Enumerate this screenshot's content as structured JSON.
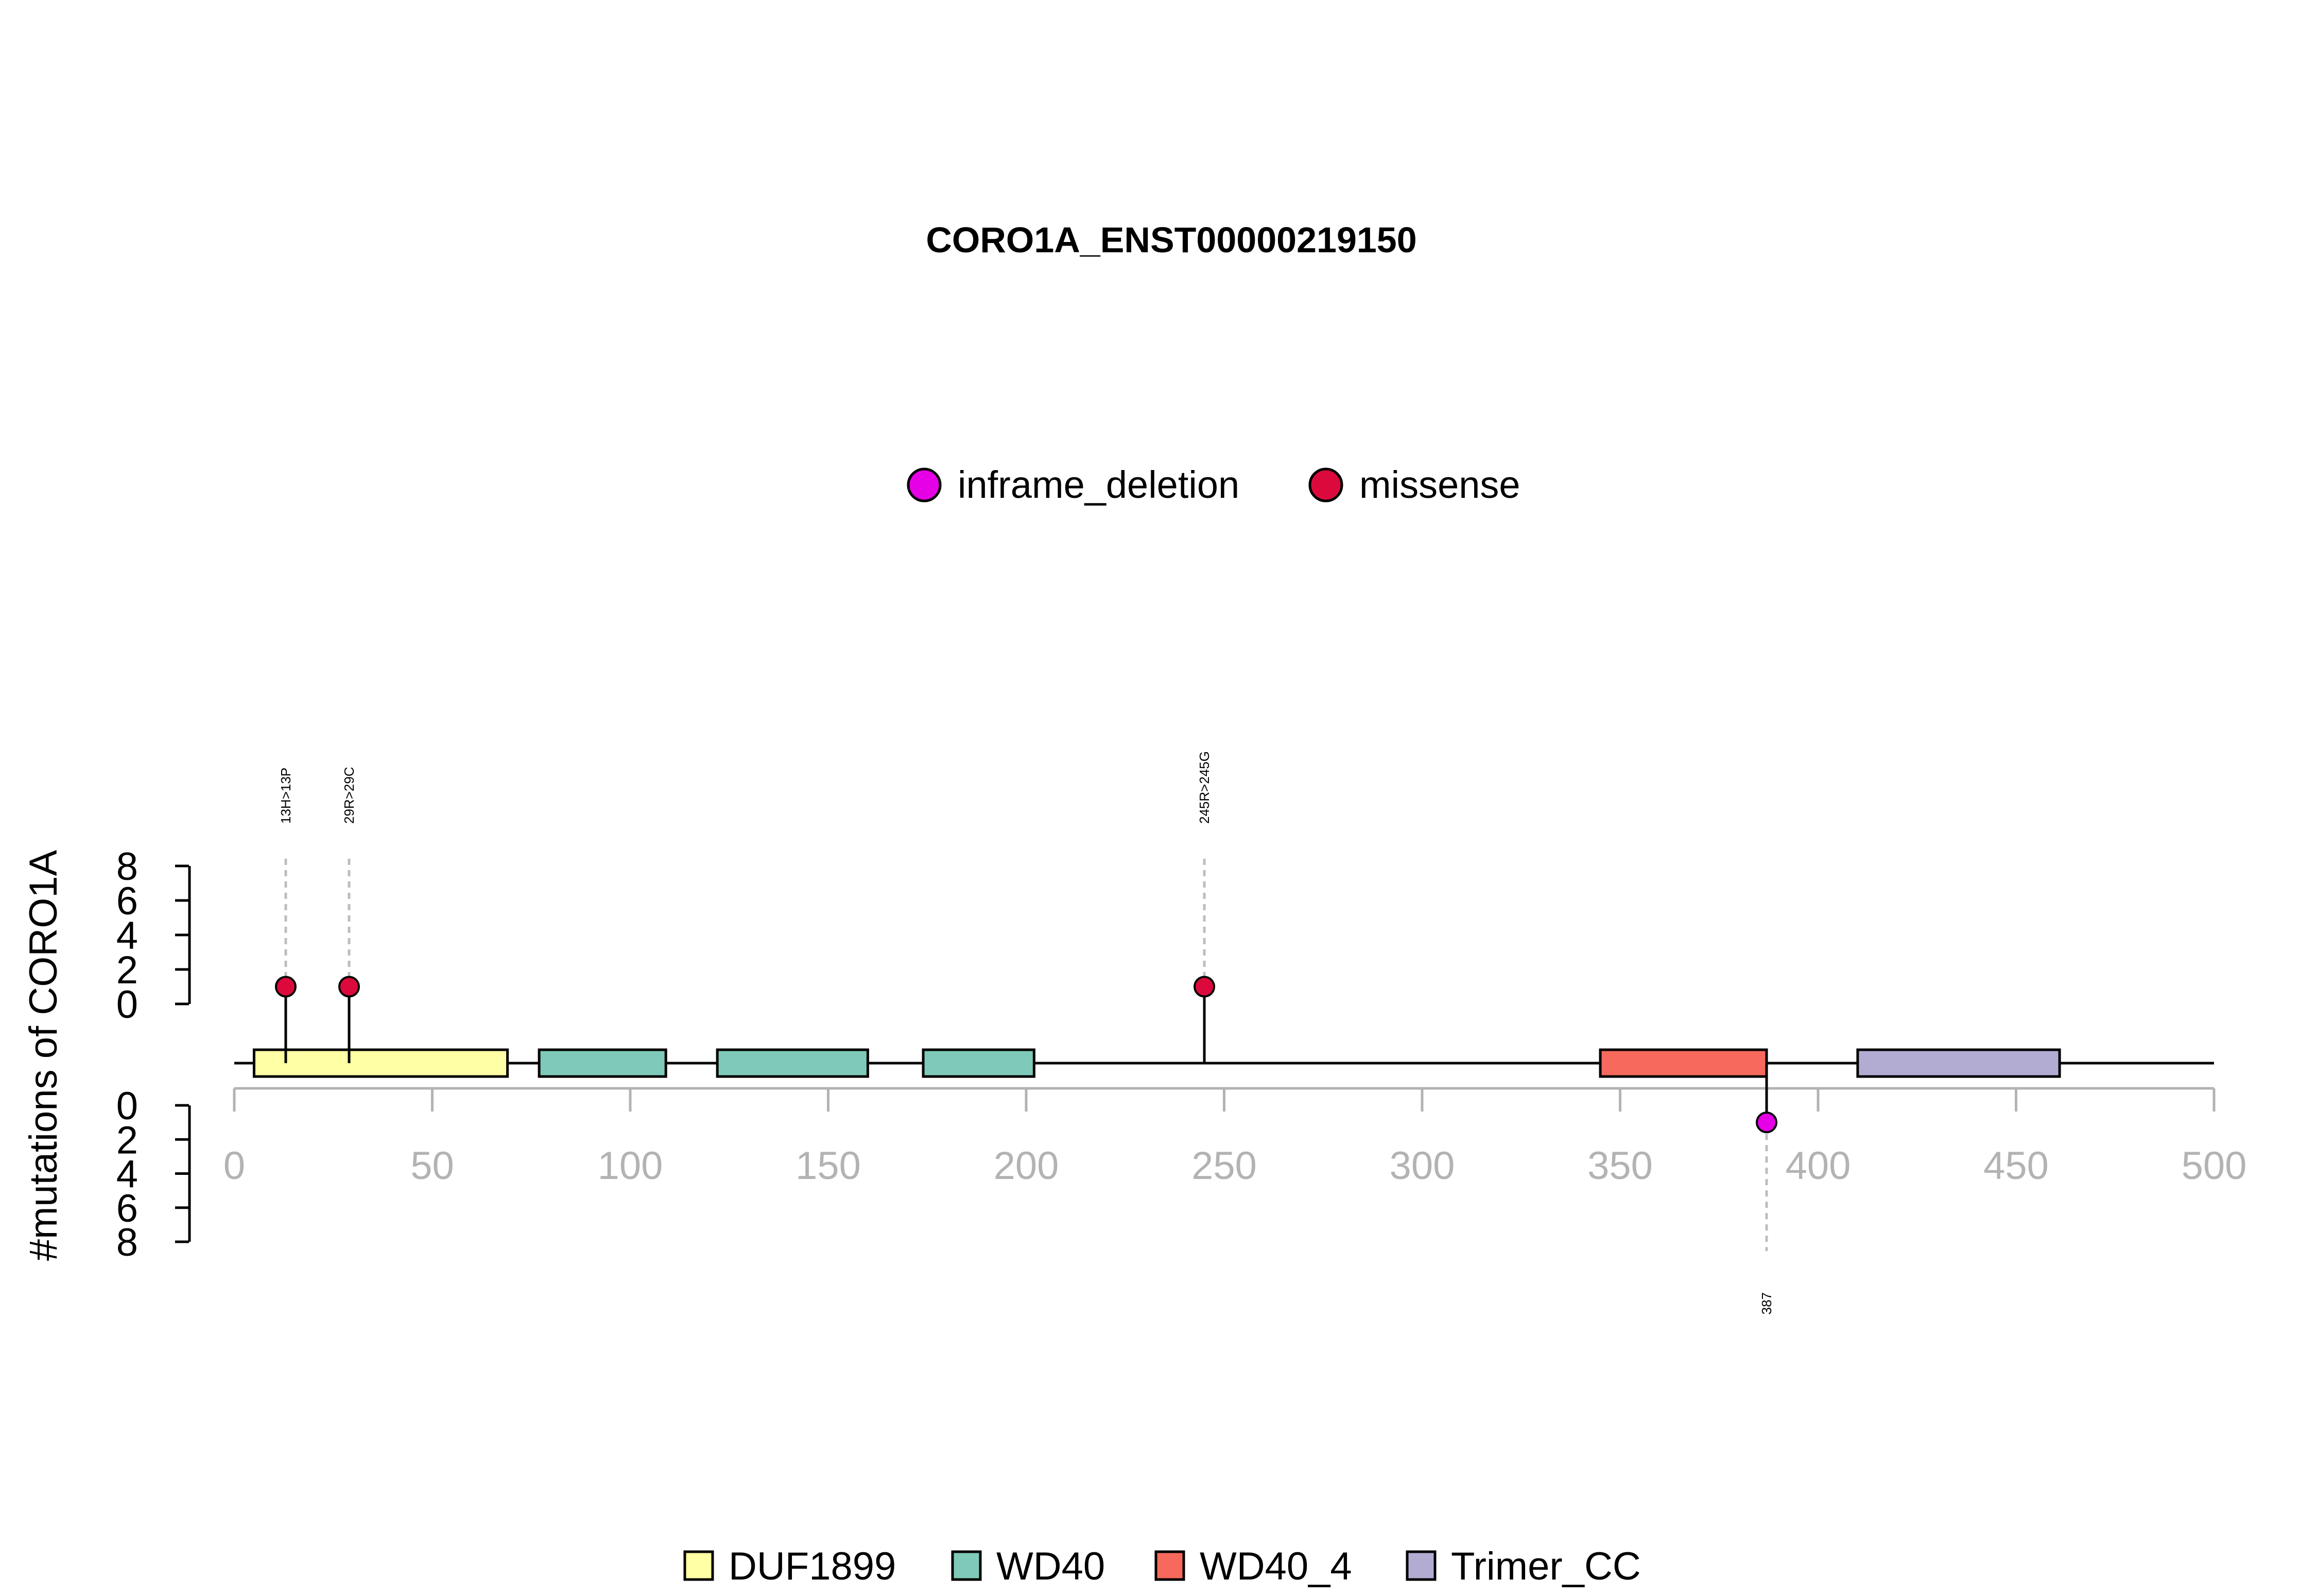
{
  "chart_data": {
    "type": "lollipop",
    "title": "CORO1A_ENST00000219150",
    "ylabel": "#mutations of CORO1A",
    "xlim": [
      0,
      500
    ],
    "xticks": [
      0,
      50,
      100,
      150,
      200,
      250,
      300,
      350,
      400,
      450,
      500
    ],
    "ylim_top": [
      0,
      8
    ],
    "ylim_bottom": [
      0,
      8
    ],
    "yticks": [
      0,
      2,
      4,
      6,
      8
    ],
    "mutation_legend": [
      {
        "name": "inframe_deletion",
        "color": "#E600E6"
      },
      {
        "name": "missense",
        "color": "#DC0A3C"
      }
    ],
    "domain_legend": [
      {
        "name": "DUF1899",
        "color": "#FFFFA6"
      },
      {
        "name": "WD40",
        "color": "#7FC9B8"
      },
      {
        "name": "WD40_4",
        "color": "#F7695C"
      },
      {
        "name": "Trimer_CC",
        "color": "#B2ACD3"
      }
    ],
    "domains": [
      {
        "name": "DUF1899",
        "start": 5,
        "end": 69
      },
      {
        "name": "WD40",
        "start": 77,
        "end": 109
      },
      {
        "name": "WD40",
        "start": 122,
        "end": 160
      },
      {
        "name": "WD40",
        "start": 174,
        "end": 202
      },
      {
        "name": "WD40_4",
        "start": 345,
        "end": 387
      },
      {
        "name": "Trimer_CC",
        "start": 410,
        "end": 461
      }
    ],
    "mutations": [
      {
        "pos": 13,
        "label": "13H>13P",
        "type": "missense",
        "count": 1,
        "side": "top"
      },
      {
        "pos": 29,
        "label": "29R>29C",
        "type": "missense",
        "count": 1,
        "side": "top"
      },
      {
        "pos": 245,
        "label": "245R>245G",
        "type": "missense",
        "count": 1,
        "side": "top"
      },
      {
        "pos": 387,
        "label": "387",
        "type": "inframe_deletion",
        "count": 1,
        "side": "bottom"
      }
    ]
  }
}
